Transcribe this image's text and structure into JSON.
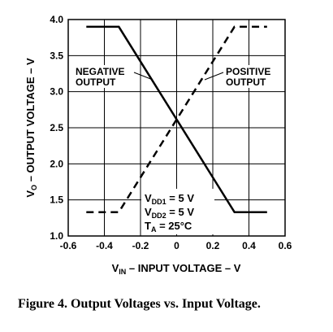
{
  "chart_data": {
    "type": "line",
    "xlabel": "V",
    "xlabel_sub": "IN",
    "xlabel_rest": " – INPUT VOLTAGE – V",
    "ylabel": "V",
    "ylabel_sub": "O",
    "ylabel_rest": " – OUTPUT VOLTAGE – V",
    "xlim": [
      -0.6,
      0.6
    ],
    "ylim": [
      1.0,
      4.0
    ],
    "xticks": [
      -0.6,
      -0.4,
      -0.2,
      0,
      0.2,
      0.4,
      0.6
    ],
    "xtick_labels": [
      "-0.6",
      "-0.4",
      "-0.2",
      "0",
      "0.2",
      "0.4",
      "0.6"
    ],
    "yticks": [
      1.0,
      1.5,
      2.0,
      2.5,
      3.0,
      3.5,
      4.0
    ],
    "ytick_labels": [
      "1.0",
      "1.5",
      "2.0",
      "2.5",
      "3.0",
      "3.5",
      "4.0"
    ],
    "grid": true,
    "series": [
      {
        "name": "NEGATIVE OUTPUT",
        "style": "solid",
        "color": "#000000",
        "x": [
          -0.5,
          -0.32,
          0.32,
          0.5
        ],
        "y": [
          3.9,
          3.9,
          1.33,
          1.33
        ]
      },
      {
        "name": "POSITIVE OUTPUT",
        "style": "dashed",
        "color": "#000000",
        "x": [
          -0.5,
          -0.32,
          0.32,
          0.5
        ],
        "y": [
          1.33,
          1.33,
          3.9,
          3.9
        ]
      }
    ],
    "annotations": {
      "negative_line1": "NEGATIVE",
      "negative_line2": "OUTPUT",
      "positive_line1": "POSITIVE",
      "positive_line2": "OUTPUT"
    },
    "conditions": [
      {
        "main": "V",
        "sub": "DD1",
        "rest": " = 5 V"
      },
      {
        "main": "V",
        "sub": "DD2",
        "rest": " = 5 V"
      },
      {
        "main": "T",
        "sub": "A",
        "rest": " = 25°C"
      }
    ]
  },
  "caption": "Figure 4. Output Voltages vs. Input Voltage."
}
